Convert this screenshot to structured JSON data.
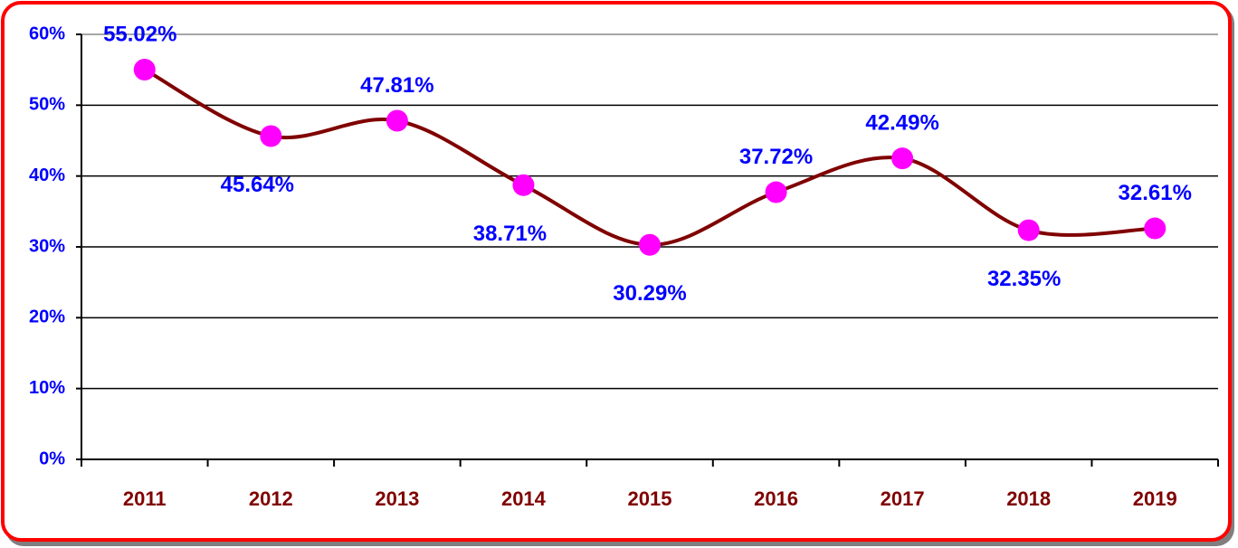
{
  "chart_data": {
    "type": "line",
    "categories": [
      "2011",
      "2012",
      "2013",
      "2014",
      "2015",
      "2016",
      "2017",
      "2018",
      "2019"
    ],
    "series": [
      {
        "color": "#800000",
        "marker_color": "#ff00ff",
        "values": [
          55.02,
          45.64,
          47.81,
          38.71,
          30.29,
          37.72,
          42.49,
          32.35,
          32.61
        ],
        "value_labels": [
          "55.02%",
          "45.64%",
          "47.81%",
          "38.71%",
          "30.29%",
          "37.72%",
          "42.49%",
          "32.35%",
          "32.61%"
        ]
      }
    ],
    "ylim": [
      0,
      60
    ],
    "yticks": [
      {
        "value": 0,
        "label": "0%"
      },
      {
        "value": 10,
        "label": "10%"
      },
      {
        "value": 20,
        "label": "20%"
      },
      {
        "value": 30,
        "label": "30%"
      },
      {
        "value": 40,
        "label": "40%"
      },
      {
        "value": 50,
        "label": "50%"
      },
      {
        "value": 60,
        "label": "60%"
      }
    ],
    "grid": true
  }
}
